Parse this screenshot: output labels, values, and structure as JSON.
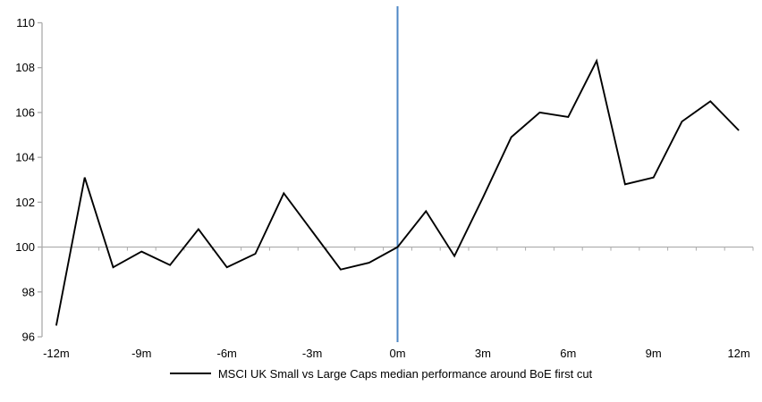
{
  "chart_data": {
    "type": "line",
    "title": "",
    "xlabel": "",
    "ylabel": "",
    "months": [
      -12,
      -11,
      -10,
      -9,
      -8,
      -7,
      -6,
      -5,
      -4,
      -3,
      -2,
      -1,
      0,
      1,
      2,
      3,
      4,
      5,
      6,
      7,
      8,
      9,
      10,
      11,
      12
    ],
    "series": [
      {
        "name": "MSCI UK Small vs Large Caps median performance around BoE first cut",
        "color": "#000000",
        "values": [
          96.5,
          103.1,
          99.1,
          99.8,
          99.2,
          100.8,
          99.1,
          99.7,
          102.4,
          100.7,
          99.0,
          99.3,
          100.0,
          101.6,
          99.6,
          102.2,
          104.9,
          106.0,
          105.8,
          108.3,
          102.8,
          103.1,
          105.6,
          106.5,
          105.2
        ]
      }
    ],
    "x_axis": {
      "tick_months": [
        -12,
        -9,
        -6,
        -3,
        0,
        3,
        6,
        9,
        12
      ],
      "tick_labels": [
        "-12m",
        "-9m",
        "-6m",
        "-3m",
        "0m",
        "3m",
        "6m",
        "9m",
        "12m"
      ],
      "cross_value": 100,
      "minor_tick_every_month": true
    },
    "y_axis": {
      "min": 96,
      "max": 110,
      "ticks": [
        110,
        108,
        106,
        104,
        102,
        100,
        98,
        96
      ],
      "tick_labels": [
        "110",
        "108",
        "106",
        "104",
        "102",
        "100",
        "98",
        "96"
      ]
    },
    "event_line": {
      "month": 0,
      "color": "#4E87C5"
    },
    "grid": false,
    "legend_position": "bottom",
    "axis_color": "#ABABAB"
  },
  "legend": {
    "label": "MSCI UK Small vs Large Caps median performance around BoE first cut",
    "swatch_color": "#000000"
  }
}
